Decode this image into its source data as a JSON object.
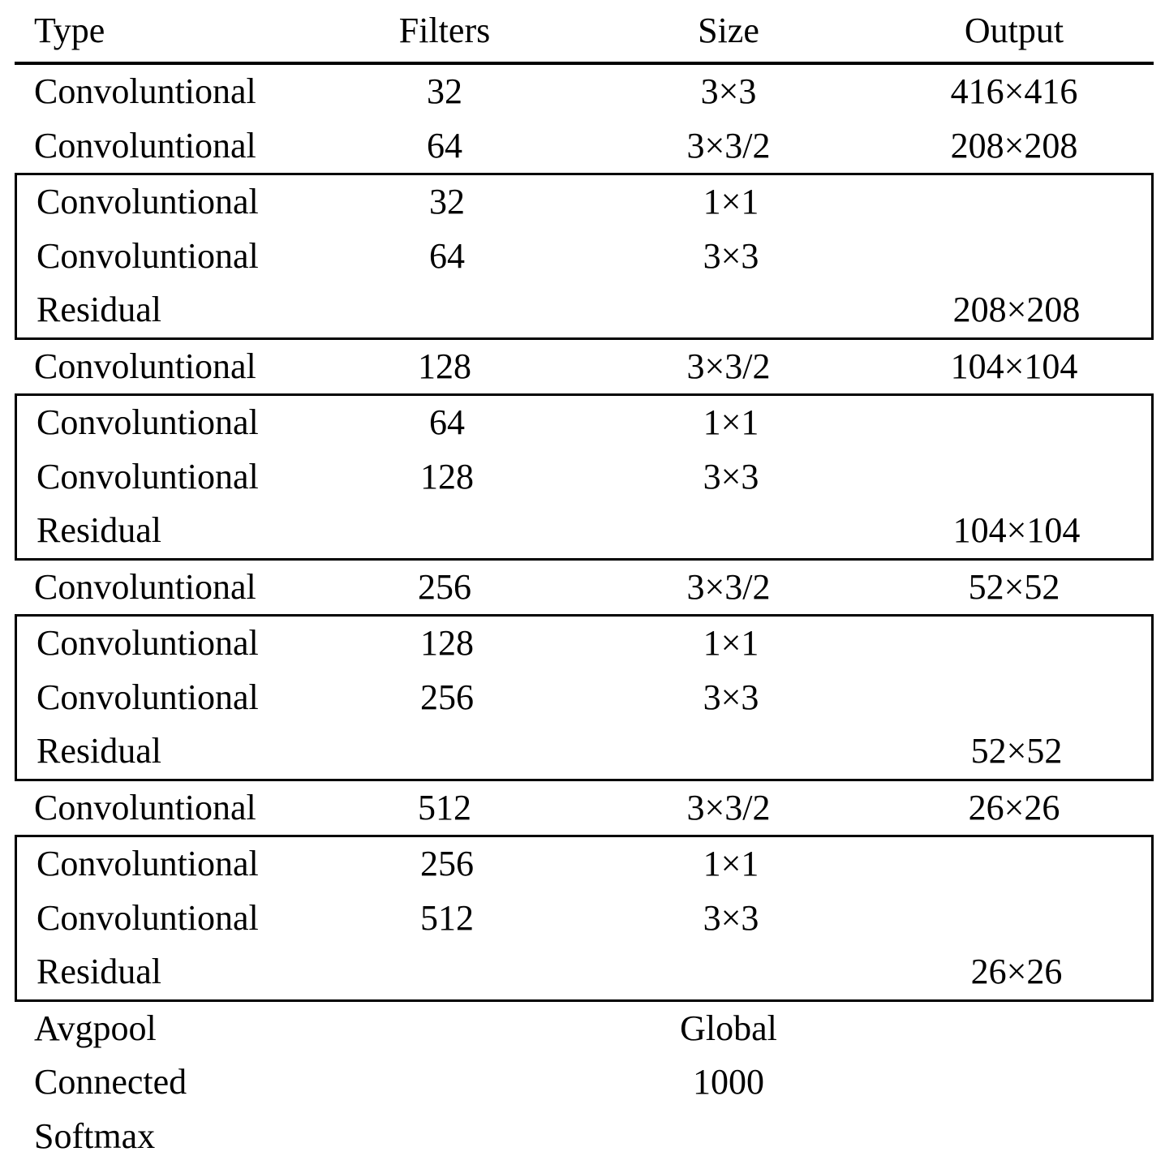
{
  "page": {
    "background_color": "#ffffff",
    "text_color": "#000000"
  },
  "table": {
    "headers": {
      "type": "Type",
      "filters": "Filters",
      "size": "Size",
      "output": "Output"
    },
    "column_keys": [
      "type",
      "filters",
      "size",
      "output"
    ],
    "sections": [
      {
        "boxed": false,
        "rows": [
          {
            "type": "Convoluntional",
            "filters": "32",
            "size": "3×3",
            "output": "416×416"
          },
          {
            "type": "Convoluntional",
            "filters": "64",
            "size": "3×3/2",
            "output": "208×208"
          }
        ]
      },
      {
        "boxed": true,
        "rows": [
          {
            "type": "Convoluntional",
            "filters": "32",
            "size": "1×1",
            "output": ""
          },
          {
            "type": "Convoluntional",
            "filters": "64",
            "size": "3×3",
            "output": ""
          },
          {
            "type": "Residual",
            "filters": "",
            "size": "",
            "output": "208×208"
          }
        ]
      },
      {
        "boxed": false,
        "rows": [
          {
            "type": "Convoluntional",
            "filters": "128",
            "size": "3×3/2",
            "output": "104×104"
          }
        ]
      },
      {
        "boxed": true,
        "rows": [
          {
            "type": "Convoluntional",
            "filters": "64",
            "size": "1×1",
            "output": ""
          },
          {
            "type": "Convoluntional",
            "filters": "128",
            "size": "3×3",
            "output": ""
          },
          {
            "type": "Residual",
            "filters": "",
            "size": "",
            "output": "104×104"
          }
        ]
      },
      {
        "boxed": false,
        "rows": [
          {
            "type": "Convoluntional",
            "filters": "256",
            "size": "3×3/2",
            "output": "52×52"
          }
        ]
      },
      {
        "boxed": true,
        "rows": [
          {
            "type": "Convoluntional",
            "filters": "128",
            "size": "1×1",
            "output": ""
          },
          {
            "type": "Convoluntional",
            "filters": "256",
            "size": "3×3",
            "output": ""
          },
          {
            "type": "Residual",
            "filters": "",
            "size": "",
            "output": "52×52"
          }
        ]
      },
      {
        "boxed": false,
        "rows": [
          {
            "type": "Convoluntional",
            "filters": "512",
            "size": "3×3/2",
            "output": "26×26"
          }
        ]
      },
      {
        "boxed": true,
        "rows": [
          {
            "type": "Convoluntional",
            "filters": "256",
            "size": "1×1",
            "output": ""
          },
          {
            "type": "Convoluntional",
            "filters": "512",
            "size": "3×3",
            "output": ""
          },
          {
            "type": "Residual",
            "filters": "",
            "size": "",
            "output": "26×26"
          }
        ]
      },
      {
        "boxed": false,
        "rows": [
          {
            "type": "Avgpool",
            "filters": "",
            "size": "Global",
            "output": ""
          },
          {
            "type": "Connected",
            "filters": "",
            "size": "1000",
            "output": ""
          },
          {
            "type": "Softmax",
            "filters": "",
            "size": "",
            "output": ""
          }
        ]
      }
    ]
  }
}
